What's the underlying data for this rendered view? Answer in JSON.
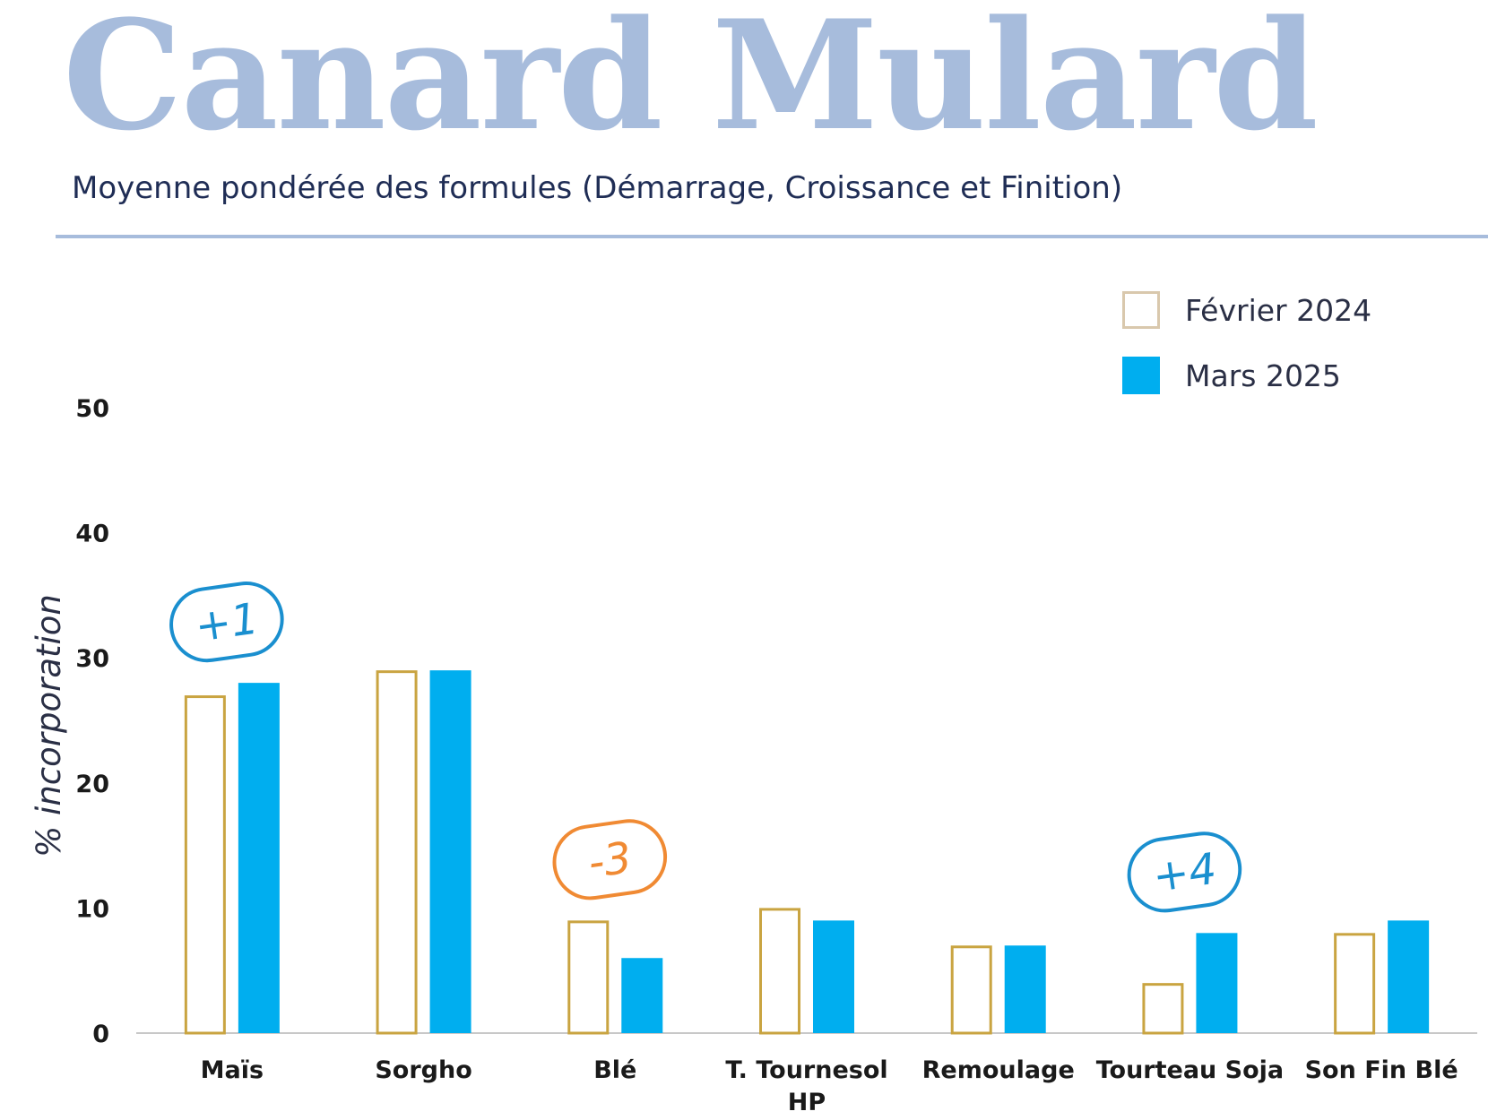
{
  "header": {
    "title": "Canard Mulard",
    "subtitle": "Moyenne pondérée des formules (Démarrage, Croissance et Finition)"
  },
  "colors": {
    "title": "#a7bcdc",
    "series_feb": "#c9a441",
    "series_mar": "#00aeef",
    "badge_increase": "#1a8fcf",
    "badge_decrease": "#f08a33",
    "axis": "#c8c8c8"
  },
  "chart_data": {
    "type": "bar",
    "ylabel": "% incorporation",
    "xlabel": "",
    "ylim": [
      0,
      50
    ],
    "yticks": [
      0,
      10,
      20,
      30,
      40,
      50
    ],
    "grid": false,
    "legend_position": "top-right",
    "categories": [
      "Maïs",
      "Sorgho",
      "Blé",
      "T. Tournesol HP",
      "Remoulage",
      "Tourteau Soja",
      "Son Fin Blé"
    ],
    "series": [
      {
        "name": "Février 2024",
        "values": [
          27,
          29,
          9,
          10,
          7,
          4,
          8
        ]
      },
      {
        "name": "Mars 2025",
        "values": [
          28,
          29,
          6,
          9,
          7,
          8,
          9
        ]
      }
    ],
    "annotations": [
      {
        "category": "Maïs",
        "text": "+1",
        "kind": "increase"
      },
      {
        "category": "Blé",
        "text": "-3",
        "kind": "decrease"
      },
      {
        "category": "Tourteau Soja",
        "text": "+4",
        "kind": "increase"
      }
    ]
  }
}
